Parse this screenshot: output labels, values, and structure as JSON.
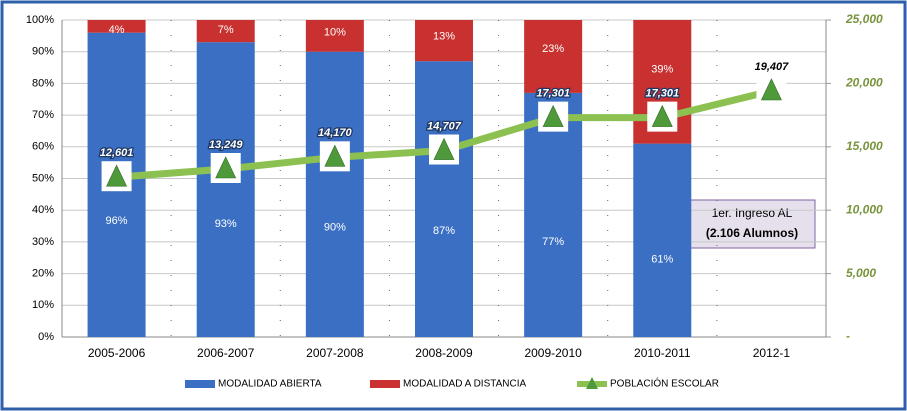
{
  "chart_data": {
    "type": "bar",
    "categories": [
      "2005-2006",
      "2006-2007",
      "2007-2008",
      "2008-2009",
      "2009-2010",
      "2010-2011",
      "2012-1"
    ],
    "series": [
      {
        "name": "MODALIDAD ABIERTA",
        "type": "bar",
        "color": "#3a6fc4",
        "values": [
          96,
          93,
          90,
          87,
          77,
          61,
          null
        ],
        "value_labels": [
          "96%",
          "93%",
          "90%",
          "87%",
          "77%",
          "61%",
          null
        ]
      },
      {
        "name": "MODALIDAD A DISTANCIA",
        "type": "bar",
        "color": "#c8312f",
        "values": [
          4,
          7,
          10,
          13,
          23,
          39,
          null
        ],
        "value_labels": [
          "4%",
          "7%",
          "10%",
          "13%",
          "23%",
          "39%",
          null
        ]
      },
      {
        "name": "POBLACIÓN ESCOLAR",
        "type": "line",
        "axis": "y2",
        "color": "#8cc152",
        "values": [
          12601,
          13249,
          14170,
          14707,
          17301,
          17301,
          19407
        ],
        "value_labels": [
          "12,601",
          "13,249",
          "14,170",
          "14,707",
          "17,301",
          "17,301",
          "19,407"
        ]
      }
    ],
    "ylim": [
      0,
      100
    ],
    "yticks": [
      {
        "value": 0,
        "label": "0%"
      },
      {
        "value": 10,
        "label": "10%"
      },
      {
        "value": 20,
        "label": "20%"
      },
      {
        "value": 30,
        "label": "30%"
      },
      {
        "value": 40,
        "label": "40%"
      },
      {
        "value": 50,
        "label": "50%"
      },
      {
        "value": 60,
        "label": "60%"
      },
      {
        "value": 70,
        "label": "70%"
      },
      {
        "value": 80,
        "label": "80%"
      },
      {
        "value": 90,
        "label": "90%"
      },
      {
        "value": 100,
        "label": "100%"
      }
    ],
    "y2lim": [
      0,
      25000
    ],
    "y2ticks": [
      {
        "value": 0,
        "label": "-"
      },
      {
        "value": 5000,
        "label": "5,000"
      },
      {
        "value": 10000,
        "label": "10,000"
      },
      {
        "value": 15000,
        "label": "15,000"
      },
      {
        "value": 20000,
        "label": "20,000"
      },
      {
        "value": 25000,
        "label": "25,000"
      }
    ],
    "grid": true,
    "annotations": [
      "1er. Ingreso AL",
      "(2.106 Alumnos)"
    ]
  }
}
